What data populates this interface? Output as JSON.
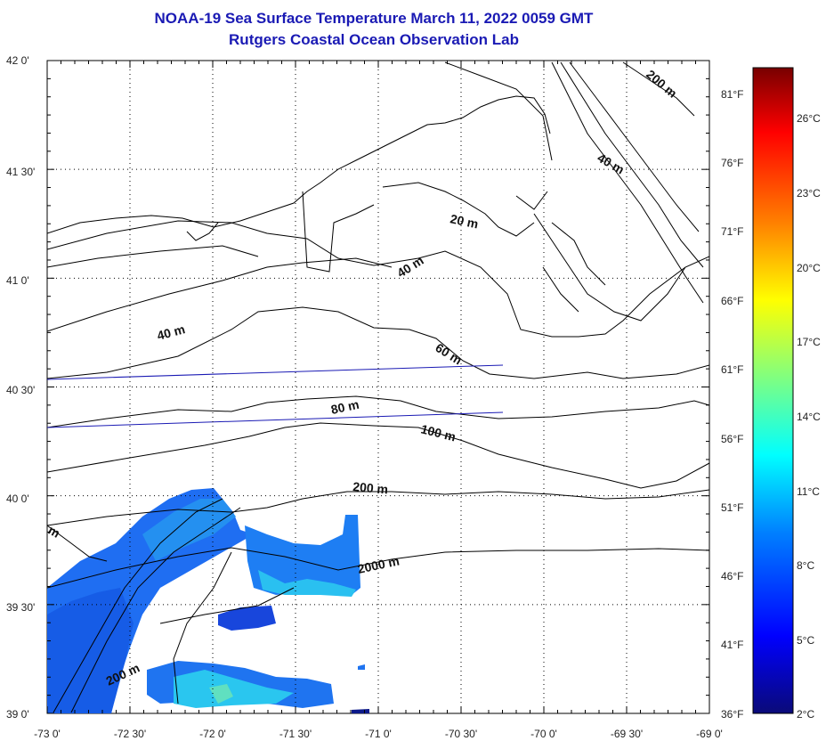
{
  "header": {
    "title": "NOAA-19 Sea Surface Temperature March 11, 2022 0059 GMT",
    "subtitle": "Rutgers Coastal Ocean Observation Lab"
  },
  "map": {
    "lat_range": [
      39.0,
      42.0
    ],
    "lon_range": [
      -73.0,
      -69.0
    ],
    "lat_labels": [
      "42 0'",
      "41 30'",
      "41 0'",
      "40 30'",
      "40 0'",
      "39 30'",
      "39 0'"
    ],
    "lon_labels": [
      "-73 0'",
      "-72 30'",
      "-72 0'",
      "-71 30'",
      "-71 0'",
      "-70 30'",
      "-70 0'",
      "-69 30'",
      "-69 0'"
    ],
    "fahrenheit_labels": [
      "81°F",
      "76°F",
      "71°F",
      "66°F",
      "61°F",
      "56°F",
      "51°F",
      "46°F",
      "41°F",
      "36°F"
    ],
    "contour_labels": [
      "200 m",
      "40 m",
      "20 m",
      "40 m",
      "40 m",
      "60 m",
      "80 m",
      "100 m",
      "200 m",
      "2000 m",
      "200 m",
      "m"
    ],
    "grid": "dotted"
  },
  "colorbar": {
    "celsius_labels": [
      "26°C",
      "23°C",
      "20°C",
      "17°C",
      "14°C",
      "11°C",
      "8°C",
      "5°C",
      "2°C"
    ],
    "range_c": [
      2,
      28
    ],
    "colors": [
      "#0a0a78",
      "#0000ff",
      "#0080ff",
      "#00ffff",
      "#80ff80",
      "#ffff00",
      "#ff8000",
      "#ff0000",
      "#780000"
    ]
  },
  "colors": {
    "title": "#1a1ab4",
    "land_line": "#000000",
    "grid": "#000000",
    "sst_cold": "#1a5cf0",
    "sst_mid": "#2aa8f0"
  }
}
